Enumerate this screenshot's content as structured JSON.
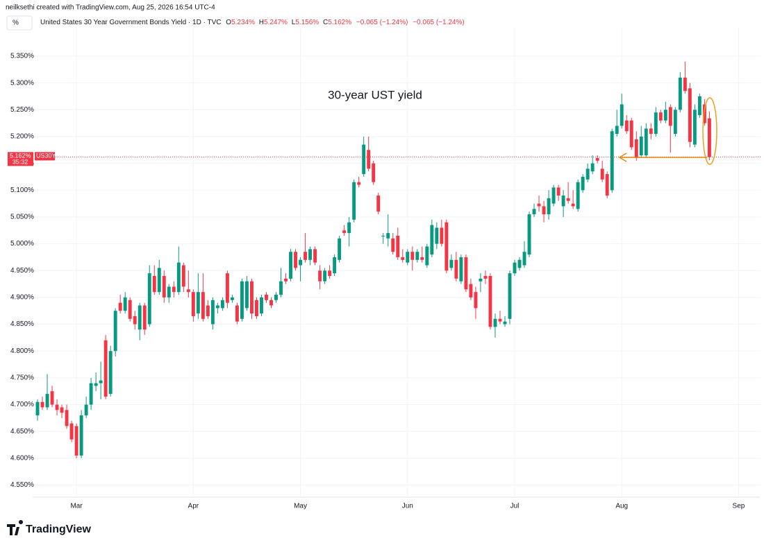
{
  "header": {
    "credit": "neilksethi created with TradingView.com, Aug 25, 2026 16:54 UTC-4"
  },
  "toolbar": {
    "unit_button": "%"
  },
  "legend": {
    "symbol": "United States 30 Year Government Bonds Yield · 1D · TVC",
    "open_key": "O",
    "open": "5.234%",
    "high_key": "H",
    "high": "5.247%",
    "low_key": "L",
    "low": "5.156%",
    "close_key": "C",
    "close": "5.162%",
    "change": "−0.065 (−1.24%)",
    "change_2": "−0.065 (−1.24%)"
  },
  "logo": {
    "text": "TradingView"
  },
  "chart_data": {
    "type": "candlestick",
    "annotation": "30-year UST yield",
    "symbol": "US30Y",
    "last_price": 5.162,
    "last_price_label": "5.162%",
    "countdown": "35:32",
    "up_color": "#089981",
    "down_color": "#f23645",
    "grid": true,
    "xlim": [
      -1,
      148.5
    ],
    "ylim": [
      4.53,
      5.403
    ],
    "xticks": [
      {
        "value": 8,
        "label": "Mar"
      },
      {
        "value": 32,
        "label": "Apr"
      },
      {
        "value": 54,
        "label": "May"
      },
      {
        "value": 76,
        "label": "Jun"
      },
      {
        "value": 98,
        "label": "Jul"
      },
      {
        "value": 120,
        "label": "Aug"
      },
      {
        "value": 144,
        "label": "Sep"
      }
    ],
    "yticks": [
      {
        "value": 5.35,
        "label": "5.350%"
      },
      {
        "value": 5.3,
        "label": "5.300%"
      },
      {
        "value": 5.25,
        "label": "5.250%"
      },
      {
        "value": 5.2,
        "label": "5.200%"
      },
      {
        "value": 5.15,
        "label": "5.150%"
      },
      {
        "value": 5.1,
        "label": "5.100%"
      },
      {
        "value": 5.05,
        "label": "5.050%"
      },
      {
        "value": 5.0,
        "label": "5.000%"
      },
      {
        "value": 4.95,
        "label": "4.950%"
      },
      {
        "value": 4.9,
        "label": "4.900%"
      },
      {
        "value": 4.85,
        "label": "4.850%"
      },
      {
        "value": 4.8,
        "label": "4.800%"
      },
      {
        "value": 4.75,
        "label": "4.750%"
      },
      {
        "value": 4.7,
        "label": "4.700%"
      },
      {
        "value": 4.65,
        "label": "4.650%"
      },
      {
        "value": 4.6,
        "label": "4.600%"
      },
      {
        "value": 4.55,
        "label": "4.550%"
      }
    ],
    "ohlc": [
      [
        4.68,
        4.71,
        4.67,
        4.705
      ],
      [
        4.705,
        4.715,
        4.69,
        4.695
      ],
      [
        4.695,
        4.757,
        4.69,
        4.72
      ],
      [
        4.725,
        4.735,
        4.695,
        4.7
      ],
      [
        4.7,
        4.71,
        4.68,
        4.69
      ],
      [
        4.695,
        4.7,
        4.675,
        4.685
      ],
      [
        4.69,
        4.7,
        4.655,
        4.66
      ],
      [
        4.665,
        4.67,
        4.63,
        4.635
      ],
      [
        4.66,
        4.665,
        4.6,
        4.605
      ],
      [
        4.605,
        4.69,
        4.6,
        4.68
      ],
      [
        4.68,
        4.715,
        4.675,
        4.7
      ],
      [
        4.7,
        4.75,
        4.69,
        4.74
      ],
      [
        4.735,
        4.76,
        4.725,
        4.74
      ],
      [
        4.74,
        4.78,
        4.71,
        4.745
      ],
      [
        4.82,
        4.83,
        4.71,
        4.715
      ],
      [
        4.72,
        4.81,
        4.715,
        4.8
      ],
      [
        4.8,
        4.88,
        4.79,
        4.875
      ],
      [
        4.89,
        4.905,
        4.87,
        4.875
      ],
      [
        4.875,
        4.91,
        4.87,
        4.9
      ],
      [
        4.895,
        4.9,
        4.855,
        4.86
      ],
      [
        4.865,
        4.875,
        4.84,
        4.85
      ],
      [
        4.84,
        4.89,
        4.82,
        4.885
      ],
      [
        4.885,
        4.89,
        4.83,
        4.84
      ],
      [
        4.85,
        4.96,
        4.845,
        4.945
      ],
      [
        4.94,
        4.96,
        4.905,
        4.91
      ],
      [
        4.91,
        4.97,
        4.905,
        4.955
      ],
      [
        4.94,
        4.95,
        4.89,
        4.9
      ],
      [
        4.9,
        4.925,
        4.89,
        4.92
      ],
      [
        4.92,
        4.93,
        4.9,
        4.91
      ],
      [
        4.91,
        4.995,
        4.905,
        4.965
      ],
      [
        4.96,
        4.965,
        4.91,
        4.92
      ],
      [
        4.915,
        4.95,
        4.9,
        4.91
      ],
      [
        4.91,
        4.915,
        4.855,
        4.865
      ],
      [
        4.87,
        4.945,
        4.86,
        4.91
      ],
      [
        4.91,
        4.945,
        4.855,
        4.86
      ],
      [
        4.885,
        4.895,
        4.86,
        4.865
      ],
      [
        4.85,
        4.9,
        4.84,
        4.895
      ],
      [
        4.88,
        4.89,
        4.87,
        4.885
      ],
      [
        4.88,
        4.9,
        4.875,
        4.895
      ],
      [
        4.945,
        4.95,
        4.88,
        4.89
      ],
      [
        4.895,
        4.905,
        4.89,
        4.9
      ],
      [
        4.885,
        4.89,
        4.85,
        4.855
      ],
      [
        4.86,
        4.935,
        4.855,
        4.93
      ],
      [
        4.88,
        4.94,
        4.875,
        4.93
      ],
      [
        4.93,
        4.935,
        4.86,
        4.87
      ],
      [
        4.895,
        4.9,
        4.86,
        4.865
      ],
      [
        4.87,
        4.905,
        4.865,
        4.9
      ],
      [
        4.905,
        4.91,
        4.89,
        4.895
      ],
      [
        4.895,
        4.9,
        4.88,
        4.885
      ],
      [
        4.895,
        4.91,
        4.89,
        4.905
      ],
      [
        4.905,
        4.955,
        4.9,
        4.93
      ],
      [
        4.935,
        4.945,
        4.925,
        4.93
      ],
      [
        4.935,
        4.99,
        4.93,
        4.985
      ],
      [
        4.985,
        4.99,
        4.95,
        4.955
      ],
      [
        4.96,
        4.975,
        4.93,
        4.97
      ],
      [
        4.985,
        5.02,
        4.965,
        4.97
      ],
      [
        4.97,
        4.995,
        4.96,
        4.99
      ],
      [
        4.99,
        4.995,
        4.96,
        4.965
      ],
      [
        4.95,
        4.96,
        4.915,
        4.93
      ],
      [
        4.93,
        4.955,
        4.925,
        4.95
      ],
      [
        4.95,
        4.96,
        4.935,
        4.94
      ],
      [
        4.945,
        4.98,
        4.94,
        4.975
      ],
      [
        4.97,
        5.015,
        4.965,
        5.01
      ],
      [
        5.025,
        5.035,
        5.015,
        5.02
      ],
      [
        5.02,
        5.05,
        4.995,
        5.04
      ],
      [
        5.045,
        5.12,
        5.04,
        5.115
      ],
      [
        5.115,
        5.125,
        5.105,
        5.11
      ],
      [
        5.13,
        5.2,
        5.125,
        5.185
      ],
      [
        5.175,
        5.2,
        5.135,
        5.14
      ],
      [
        5.15,
        5.155,
        5.11,
        5.115
      ],
      [
        5.09,
        5.095,
        5.055,
        5.06
      ],
      [
        5.015,
        5.02,
        5.0,
        5.015
      ],
      [
        5.01,
        5.055,
        4.995,
        5.02
      ],
      [
        5.01,
        5.02,
        4.98,
        4.985
      ],
      [
        5.015,
        5.03,
        4.97,
        4.975
      ],
      [
        4.975,
        4.99,
        4.965,
        4.97
      ],
      [
        4.965,
        4.99,
        4.96,
        4.985
      ],
      [
        4.985,
        4.995,
        4.95,
        4.97
      ],
      [
        4.97,
        4.99,
        4.965,
        4.985
      ],
      [
        4.975,
        4.995,
        4.965,
        4.97
      ],
      [
        4.96,
        5.0,
        4.955,
        4.995
      ],
      [
        4.98,
        5.045,
        4.975,
        5.035
      ],
      [
        5.0,
        5.04,
        4.99,
        5.03
      ],
      [
        5.03,
        5.045,
        4.995,
        5.0
      ],
      [
        5.04,
        5.045,
        4.945,
        4.95
      ],
      [
        4.955,
        4.98,
        4.95,
        4.97
      ],
      [
        4.97,
        4.985,
        4.93,
        4.935
      ],
      [
        4.93,
        4.98,
        4.925,
        4.975
      ],
      [
        4.975,
        4.98,
        4.91,
        4.915
      ],
      [
        4.925,
        4.935,
        4.895,
        4.9
      ],
      [
        4.91,
        4.92,
        4.86,
        4.88
      ],
      [
        4.93,
        4.945,
        4.91,
        4.935
      ],
      [
        4.94,
        4.95,
        4.925,
        4.935
      ],
      [
        4.94,
        4.945,
        4.84,
        4.845
      ],
      [
        4.845,
        4.87,
        4.825,
        4.86
      ],
      [
        4.86,
        4.875,
        4.85,
        4.855
      ],
      [
        4.85,
        4.865,
        4.845,
        4.855
      ],
      [
        4.86,
        4.95,
        4.85,
        4.945
      ],
      [
        4.945,
        4.97,
        4.94,
        4.965
      ],
      [
        4.955,
        4.975,
        4.95,
        4.97
      ],
      [
        4.96,
        5.005,
        4.955,
        4.985
      ],
      [
        4.98,
        5.06,
        4.975,
        5.055
      ],
      [
        5.055,
        5.075,
        5.05,
        5.065
      ],
      [
        5.075,
        5.09,
        5.06,
        5.07
      ],
      [
        5.07,
        5.08,
        5.04,
        5.055
      ],
      [
        5.055,
        5.1,
        5.045,
        5.085
      ],
      [
        5.075,
        5.11,
        5.07,
        5.105
      ],
      [
        5.105,
        5.11,
        5.08,
        5.09
      ],
      [
        5.07,
        5.1,
        5.05,
        5.09
      ],
      [
        5.085,
        5.115,
        5.075,
        5.08
      ],
      [
        5.075,
        5.1,
        5.065,
        5.07
      ],
      [
        5.065,
        5.12,
        5.06,
        5.115
      ],
      [
        5.1,
        5.13,
        5.095,
        5.125
      ],
      [
        5.12,
        5.15,
        5.115,
        5.14
      ],
      [
        5.135,
        5.165,
        5.13,
        5.15
      ],
      [
        5.16,
        5.165,
        5.15,
        5.155
      ],
      [
        5.14,
        5.155,
        5.115,
        5.12
      ],
      [
        5.13,
        5.135,
        5.085,
        5.09
      ],
      [
        5.1,
        5.215,
        5.095,
        5.21
      ],
      [
        5.205,
        5.25,
        5.2,
        5.22
      ],
      [
        5.22,
        5.28,
        5.215,
        5.26
      ],
      [
        5.23,
        5.24,
        5.205,
        5.21
      ],
      [
        5.23,
        5.235,
        5.175,
        5.18
      ],
      [
        5.195,
        5.21,
        5.155,
        5.16
      ],
      [
        5.165,
        5.22,
        5.16,
        5.2
      ],
      [
        5.165,
        5.225,
        5.16,
        5.215
      ],
      [
        5.215,
        5.225,
        5.195,
        5.205
      ],
      [
        5.205,
        5.255,
        5.2,
        5.245
      ],
      [
        5.245,
        5.25,
        5.225,
        5.23
      ],
      [
        5.23,
        5.265,
        5.225,
        5.25
      ],
      [
        5.255,
        5.26,
        5.17,
        5.22
      ],
      [
        5.205,
        5.255,
        5.2,
        5.25
      ],
      [
        5.25,
        5.32,
        5.245,
        5.31
      ],
      [
        5.31,
        5.34,
        5.28,
        5.285
      ],
      [
        5.29,
        5.3,
        5.18,
        5.19
      ],
      [
        5.185,
        5.26,
        5.18,
        5.25
      ],
      [
        5.24,
        5.28,
        5.235,
        5.275
      ],
      [
        5.26,
        5.27,
        5.22,
        5.225
      ],
      [
        5.234,
        5.247,
        5.156,
        5.162
      ]
    ]
  }
}
